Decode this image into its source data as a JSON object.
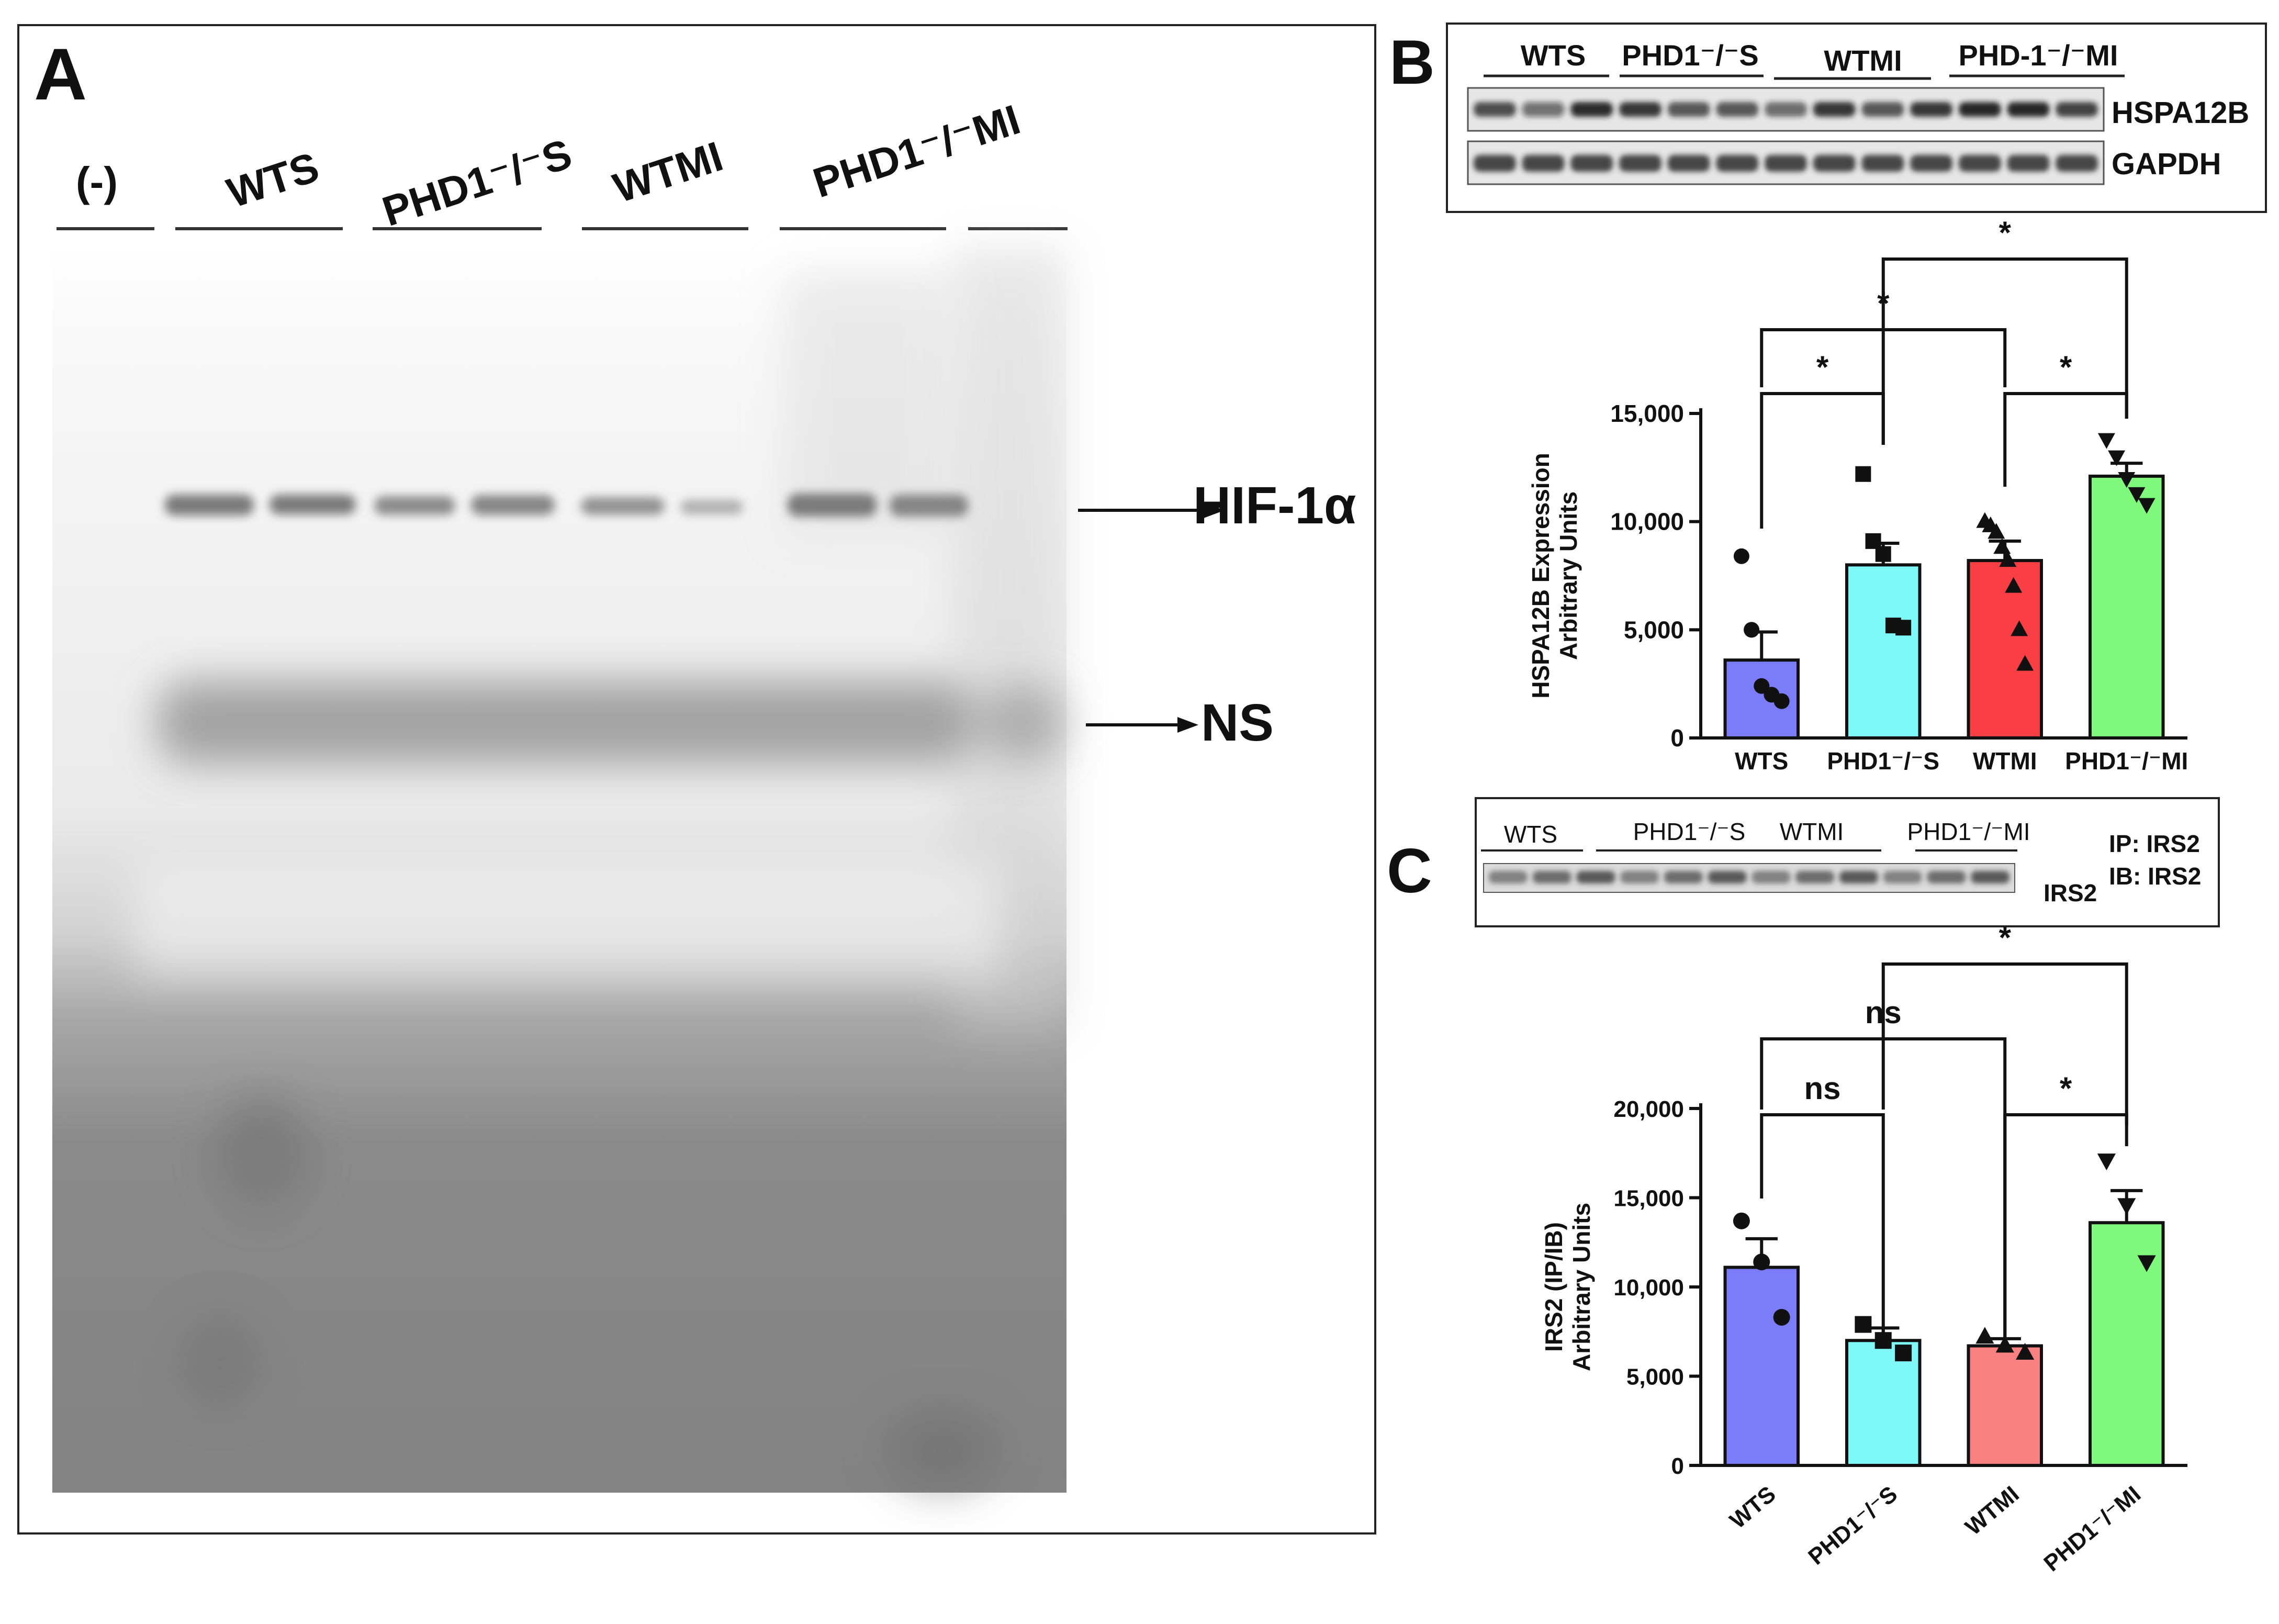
{
  "panel_a": {
    "letter": "A",
    "lane_labels": [
      "(-)",
      "WTS",
      "PHD1⁻/⁻S",
      "WTMI",
      "PHD1⁻/⁻MI"
    ],
    "band_labels": [
      "HIF-1α",
      "NS"
    ]
  },
  "panel_b": {
    "letter": "B",
    "group_labels": [
      "WTS",
      "PHD1⁻/⁻S",
      "WTMI",
      "PHD-1⁻/⁻MI"
    ],
    "blot_labels": [
      "HSPA12B",
      "GAPDH"
    ],
    "chart_data": {
      "type": "bar",
      "categories": [
        "WTS",
        "PHD1⁻/⁻S",
        "WTMI",
        "PHD1⁻/⁻MI"
      ],
      "values": [
        3600,
        8000,
        8200,
        12100
      ],
      "errors": [
        1300,
        1000,
        900,
        600
      ],
      "points": [
        [
          8400,
          5000,
          2400,
          2000,
          1700
        ],
        [
          12200,
          9100,
          8500,
          5200,
          5100
        ],
        [
          10000,
          9800,
          9500,
          8800,
          8200,
          7000,
          5000,
          3400
        ],
        [
          13800,
          13000,
          12000,
          11300,
          10800
        ]
      ],
      "ylabel": "HSPA12B Expression\nArbitrary Units",
      "ylim": [
        0,
        15000
      ],
      "yticks": [
        "0",
        "5,000",
        "10,000",
        "15,000"
      ],
      "colors": [
        "#7b7cf7",
        "#7ef9f7",
        "#f93f44",
        "#7ff97c"
      ],
      "significance": [
        "*",
        "*",
        "*",
        "*"
      ]
    }
  },
  "panel_c": {
    "letter": "C",
    "group_labels": [
      "WTS",
      "PHD1⁻/⁻S",
      "WTMI",
      "PHD1⁻/⁻MI"
    ],
    "blot_label": "IRS2",
    "ip_label": "IP: IRS2",
    "ib_label": "IB: IRS2",
    "chart_data": {
      "type": "bar",
      "categories": [
        "WTS",
        "PHD1⁻/⁻S",
        "WTMI",
        "PHD1⁻/⁻MI"
      ],
      "values": [
        11100,
        7000,
        6700,
        13600
      ],
      "errors": [
        1600,
        700,
        400,
        1800
      ],
      "points": [
        [
          13700,
          11400,
          8300
        ],
        [
          7900,
          7000,
          6300
        ],
        [
          7200,
          6700,
          6300
        ],
        [
          17100,
          14600,
          11400
        ]
      ],
      "ylabel": "IRS2 (IP/IB)\nArbitrary Units",
      "ylim": [
        0,
        20000
      ],
      "yticks": [
        "0",
        "5,000",
        "10,000",
        "15,000",
        "20,000"
      ],
      "colors": [
        "#7b7cf7",
        "#7ef9f7",
        "#f98080",
        "#7ff97c"
      ],
      "significance": [
        "ns",
        "ns",
        "*",
        "*"
      ]
    }
  }
}
